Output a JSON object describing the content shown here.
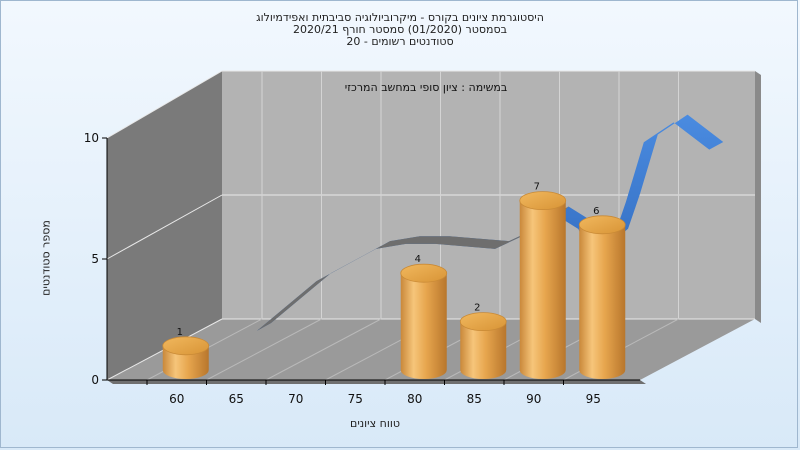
{
  "titles": {
    "line1": "היסטוגרמת ציונים בקורס - מיקרוביולוגיה סביבתית ואפידמיולוג",
    "line2": "בסמסטר  (01/2020)  סמסטר חורף 2020/21",
    "line3": "סטודנטים רשומים - 20"
  },
  "chart_data": {
    "type": "bar",
    "subtitle": "במשימה : ציון סופי במחשב המרכזי",
    "xlabel": "טווח ציונים",
    "ylabel": "מספר סטודנטים",
    "ylim": [
      0,
      10
    ],
    "y_ticks": [
      "0",
      "5",
      "10"
    ],
    "x_ticks": [
      "60",
      "65",
      "70",
      "75",
      "80",
      "85",
      "90",
      "95"
    ],
    "bars": [
      {
        "category": "60",
        "value": 1,
        "label": "1"
      },
      {
        "category": "80",
        "value": 4,
        "label": "4"
      },
      {
        "category": "85",
        "value": 2,
        "label": "2"
      },
      {
        "category": "90",
        "value": 7,
        "label": "7"
      },
      {
        "category": "95",
        "value": 6,
        "label": "6"
      }
    ],
    "curve": {
      "x": [
        60,
        65,
        70,
        72.5,
        75,
        80,
        84,
        85,
        87,
        88,
        90,
        91,
        92.5,
        95,
        98
      ],
      "y": [
        0,
        2,
        3.3,
        3.5,
        3.5,
        3.3,
        4.2,
        4.7,
        4.1,
        3,
        3.8,
        5.2,
        7.6,
        8.4,
        7.3
      ]
    },
    "grid": true,
    "legend": "none",
    "colors": {
      "bar": "#e6a84c",
      "curve": "#3273c8",
      "back_wall": "#b3b3b3",
      "side_wall": "#7a7a7a",
      "floor": "#9a9a9a"
    }
  }
}
